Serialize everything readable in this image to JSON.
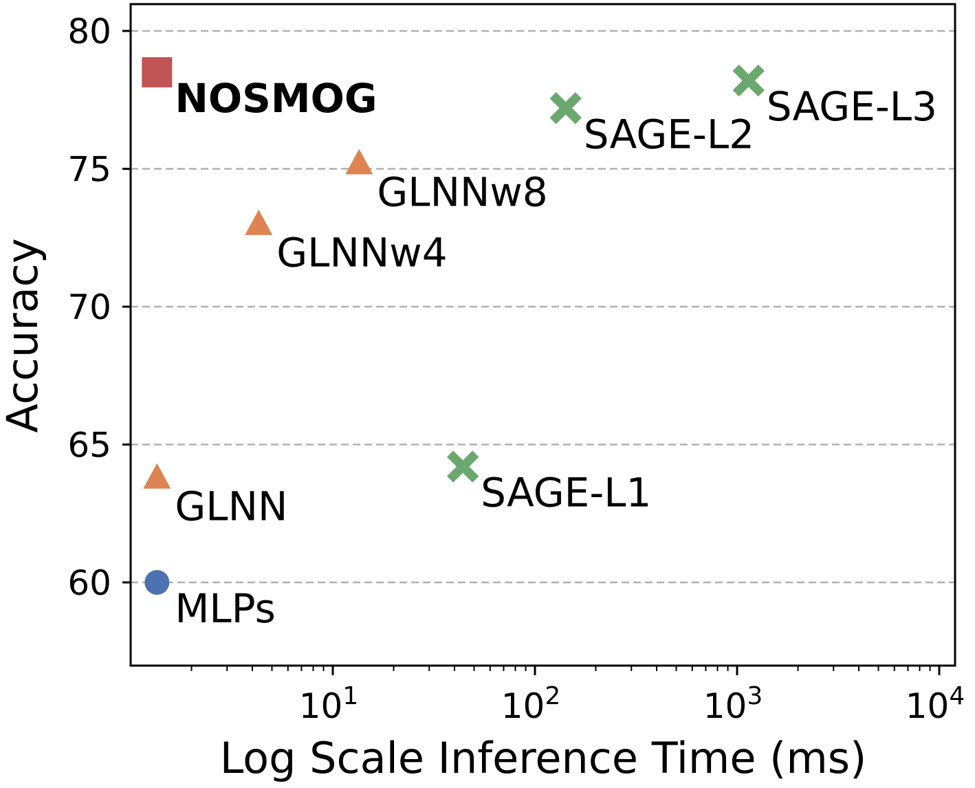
{
  "chart_data": {
    "type": "scatter",
    "title": "",
    "xlabel": "Log Scale Inference Time (ms)",
    "ylabel": "Accuracy",
    "xscale": "log",
    "xlim": [
      1.15,
      12000
    ],
    "ylim": [
      57,
      81
    ],
    "grid": "horizontal dashed",
    "yticks": [
      60,
      65,
      70,
      75,
      80
    ],
    "xticks": [
      {
        "base": "10",
        "exp": "1",
        "value": 10
      },
      {
        "base": "10",
        "exp": "2",
        "value": 100
      },
      {
        "base": "10",
        "exp": "3",
        "value": 1000
      },
      {
        "base": "10",
        "exp": "4",
        "value": 10000
      }
    ],
    "colors": {
      "nosmog": "#c05455",
      "glnn": "#dd8452",
      "sage": "#6aa86f",
      "mlp": "#4c72b0"
    },
    "series": [
      {
        "name": "NOSMOG",
        "label": "NOSMOG",
        "x": 1.35,
        "y": 78.5,
        "marker": "square",
        "color": "#c05455",
        "bold": true
      },
      {
        "name": "GLNNw8",
        "label": "GLNNw8",
        "x": 13.5,
        "y": 75.1,
        "marker": "triangle",
        "color": "#dd8452",
        "bold": false
      },
      {
        "name": "GLNNw4",
        "label": "GLNNw4",
        "x": 4.3,
        "y": 72.9,
        "marker": "triangle",
        "color": "#dd8452",
        "bold": false
      },
      {
        "name": "GLNN",
        "label": "GLNN",
        "x": 1.35,
        "y": 63.7,
        "marker": "triangle",
        "color": "#dd8452",
        "bold": false
      },
      {
        "name": "MLPs",
        "label": "MLPs",
        "x": 1.35,
        "y": 60.0,
        "marker": "circle",
        "color": "#4c72b0",
        "bold": false
      },
      {
        "name": "SAGE-L1",
        "label": "SAGE-L1",
        "x": 44,
        "y": 64.2,
        "marker": "x",
        "color": "#6aa86f",
        "bold": false
      },
      {
        "name": "SAGE-L2",
        "label": "SAGE-L2",
        "x": 142,
        "y": 77.2,
        "marker": "x",
        "color": "#6aa86f",
        "bold": false
      },
      {
        "name": "SAGE-L3",
        "label": "SAGE-L3",
        "x": 1140,
        "y": 78.2,
        "marker": "x",
        "color": "#6aa86f",
        "bold": false
      }
    ]
  }
}
